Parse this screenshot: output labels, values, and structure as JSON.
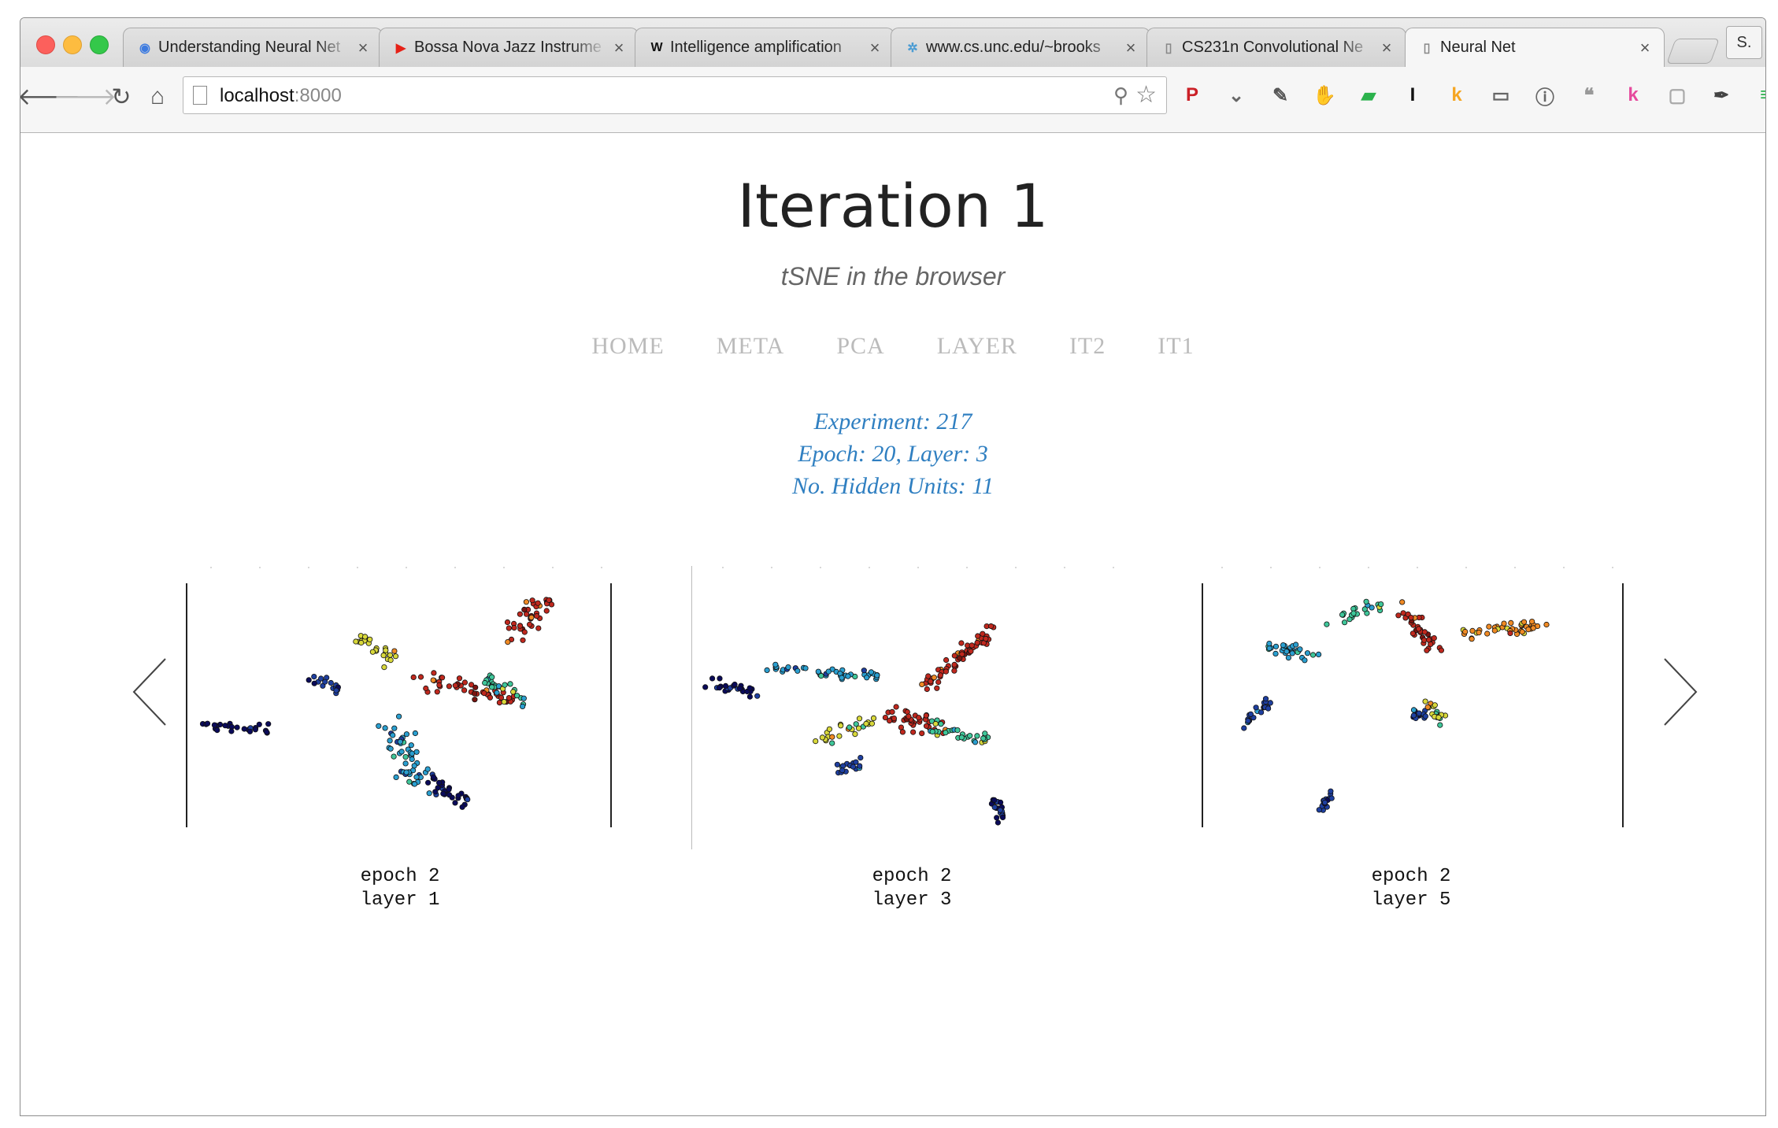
{
  "browser": {
    "tabs": [
      {
        "title": "Understanding Neural Net",
        "icon": "globe-icon",
        "color": "#3d7be0",
        "glyph": "◉",
        "active": false
      },
      {
        "title": "Bossa Nova Jazz Instrume",
        "icon": "youtube-icon",
        "color": "#e62117",
        "glyph": "▶",
        "active": false
      },
      {
        "title": "Intelligence amplification",
        "icon": "wikipedia-icon",
        "color": "#111111",
        "glyph": "W",
        "active": false
      },
      {
        "title": "www.cs.unc.edu/~brooks",
        "icon": "unc-icon",
        "color": "#4b9cd3",
        "glyph": "✲",
        "active": false
      },
      {
        "title": "CS231n Convolutional Ne",
        "icon": "page-icon",
        "color": "#888888",
        "glyph": "▯",
        "active": false
      },
      {
        "title": "Neural Net",
        "icon": "page-icon",
        "color": "#888888",
        "glyph": "▯",
        "active": true
      }
    ],
    "close_glyph": "×",
    "profile_initial": "S.",
    "url_host": "localhost",
    "url_port": ":8000",
    "extensions": [
      {
        "name": "pinterest-icon",
        "glyph": "P",
        "color": "#cb2027"
      },
      {
        "name": "pocket-icon",
        "glyph": "⌄",
        "color": "#666666"
      },
      {
        "name": "evernote-icon",
        "glyph": "✎",
        "color": "#555555"
      },
      {
        "name": "adblock-icon",
        "glyph": "✋",
        "color": "#e03b2f"
      },
      {
        "name": "feedly-icon",
        "glyph": "▰",
        "color": "#2bb24c"
      },
      {
        "name": "instapaper-icon",
        "glyph": "I",
        "color": "#111111"
      },
      {
        "name": "kippt-icon",
        "glyph": "k",
        "color": "#f5a623"
      },
      {
        "name": "cast-icon",
        "glyph": "▭",
        "color": "#666666"
      },
      {
        "name": "onepassword-icon",
        "glyph": "ⓘ",
        "color": "#666666"
      },
      {
        "name": "hangouts-icon",
        "glyph": "❝",
        "color": "#999999"
      },
      {
        "name": "kiwi-icon",
        "glyph": "k",
        "color": "#e64a9d"
      },
      {
        "name": "chat-icon",
        "glyph": "▢",
        "color": "#aaaaaa"
      },
      {
        "name": "eyedropper-icon",
        "glyph": "✒",
        "color": "#444444"
      },
      {
        "name": "menu-icon",
        "glyph": "≡",
        "color": "#2bb24c"
      }
    ]
  },
  "page": {
    "title": "Iteration 1",
    "subtitle": "tSNE in the browser",
    "nav": [
      "HOME",
      "META",
      "PCA",
      "LAYER",
      "IT2",
      "IT1"
    ],
    "meta": {
      "experiment": "Experiment: 217",
      "epoch_layer": "Epoch: 20, Layer: 3",
      "hidden_units": "No. Hidden Units: 11"
    },
    "slides": [
      {
        "caption_line1": "epoch 2",
        "caption_line2": "layer 1"
      },
      {
        "caption_line1": "epoch 2",
        "caption_line2": "layer 3"
      },
      {
        "caption_line1": "epoch 2",
        "caption_line2": "layer 5"
      }
    ]
  },
  "colors": {
    "accent_blue": "#2f7fc1",
    "nav_gray": "#bbbbbb",
    "cluster_palette": [
      "#0a0a5a",
      "#1e3fa0",
      "#2a9fd0",
      "#3fc79a",
      "#d8d83a",
      "#f08a24",
      "#c0281e",
      "#7a1410"
    ]
  }
}
